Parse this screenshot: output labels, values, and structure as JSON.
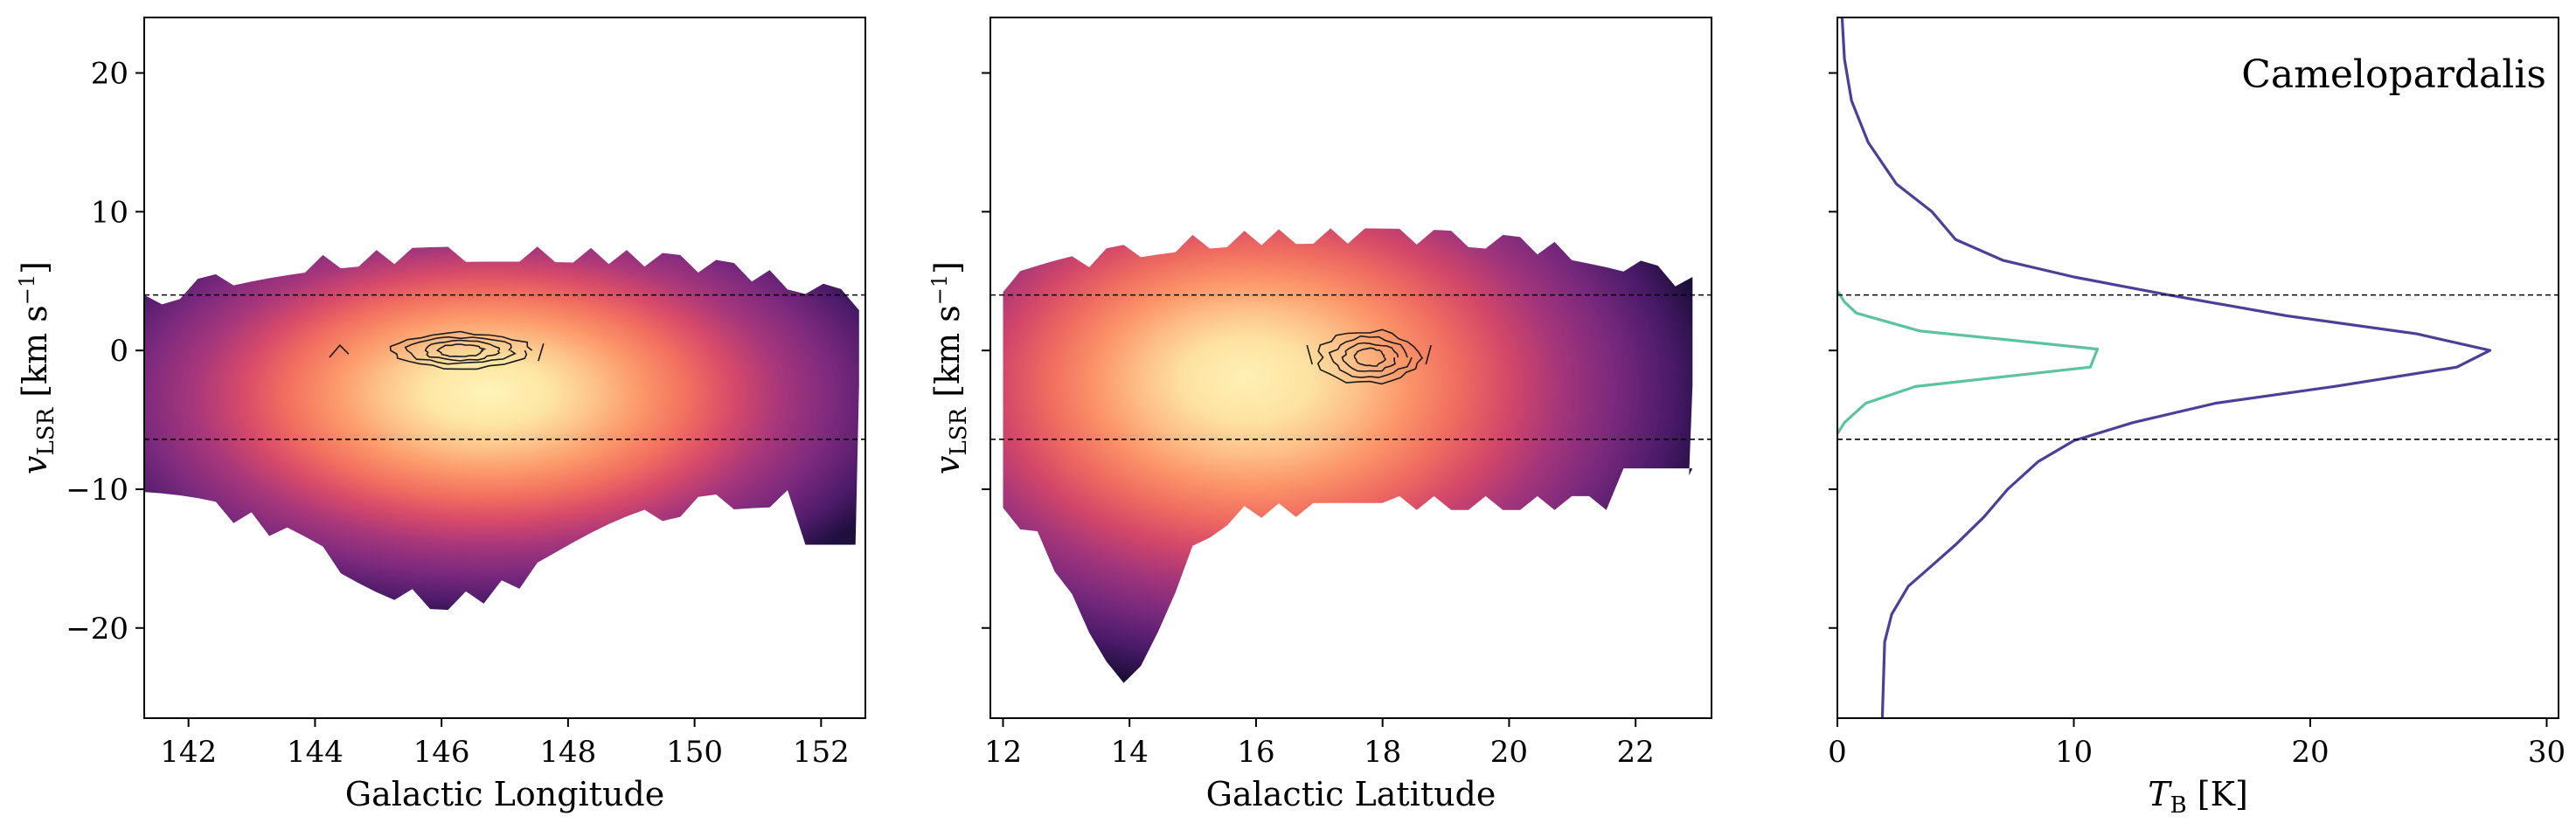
{
  "chart_data": [
    {
      "type": "heatmap",
      "panel": "lv",
      "xlabel": "Galactic Longitude",
      "ylabel": "v_LSR [km s^-1]",
      "ylabel_main": "v",
      "ylabel_sub": "LSR",
      "ylabel_units": " [km s",
      "ylabel_exp": "−1",
      "ylabel_close": "]",
      "xlim": [
        141.3,
        152.7
      ],
      "ylim": [
        -26.5,
        24
      ],
      "xticks": [
        142,
        144,
        146,
        148,
        150,
        152
      ],
      "yticks": [
        -20,
        -10,
        0,
        10,
        20
      ],
      "ytick_labels": [
        "−20",
        "−10",
        "0",
        "10",
        "20"
      ],
      "hlines": [
        4,
        -6.4
      ],
      "emission": {
        "x_range": [
          141.3,
          152.6
        ],
        "v_top": 7.5,
        "v_bottom_min": -19.5,
        "peak_center": [
          146.7,
          0
        ]
      },
      "contours_center": [
        146.3,
        0
      ]
    },
    {
      "type": "heatmap",
      "panel": "bv",
      "xlabel": "Galactic Latitude",
      "ylabel": "v_LSR [km s^-1]",
      "ylabel_main": "v",
      "ylabel_sub": "LSR",
      "ylabel_units": " [km s",
      "ylabel_exp": "−1",
      "ylabel_close": "]",
      "xlim": [
        11.8,
        23.2
      ],
      "ylim": [
        -26.5,
        24
      ],
      "xticks": [
        12,
        14,
        16,
        18,
        20,
        22
      ],
      "yticks": [
        -20,
        -10,
        0,
        10,
        20
      ],
      "hlines": [
        4,
        -6.4
      ],
      "emission": {
        "x_range": [
          12.0,
          22.9
        ],
        "v_top": 8.8,
        "v_bottom_min": -23.2,
        "peak_center": [
          15.5,
          1
        ]
      },
      "contours_center": [
        17.8,
        -0.5
      ]
    },
    {
      "type": "line",
      "panel": "spectrum",
      "xlabel": "T_B [K]",
      "xlabel_main": "T",
      "xlabel_sub": "B",
      "xlabel_units": " [K]",
      "annotation": "Camelopardalis",
      "xlim": [
        0,
        30.5
      ],
      "ylim": [
        -26.5,
        24
      ],
      "xticks": [
        0,
        10,
        20,
        30
      ],
      "yticks": [
        -20,
        -10,
        0,
        10,
        20
      ],
      "hlines": [
        4,
        -6.4
      ],
      "series": [
        {
          "color": "#4b3f98",
          "points": [
            [
              0.2,
              24
            ],
            [
              0.3,
              21
            ],
            [
              0.6,
              18
            ],
            [
              1.3,
              15
            ],
            [
              2.5,
              12
            ],
            [
              4,
              10
            ],
            [
              5,
              8
            ],
            [
              7,
              6.5
            ],
            [
              10,
              5.3
            ],
            [
              14,
              4
            ],
            [
              19,
              2.5
            ],
            [
              24.5,
              1.2
            ],
            [
              27.6,
              0
            ],
            [
              26.2,
              -1.2
            ],
            [
              21,
              -2.6
            ],
            [
              16,
              -3.8
            ],
            [
              12.5,
              -5.2
            ],
            [
              10,
              -6.5
            ],
            [
              8.5,
              -8
            ],
            [
              7.2,
              -10
            ],
            [
              6.2,
              -12
            ],
            [
              5,
              -14
            ],
            [
              4,
              -15.5
            ],
            [
              3,
              -17
            ],
            [
              2.3,
              -19
            ],
            [
              2,
              -21
            ],
            [
              1.9,
              -26.5
            ]
          ]
        },
        {
          "color": "#5cc3a2",
          "points": [
            [
              0,
              4.3
            ],
            [
              0.3,
              3.5
            ],
            [
              0.8,
              2.7
            ],
            [
              3.5,
              1.4
            ],
            [
              7,
              0.8
            ],
            [
              11,
              0.1
            ],
            [
              10.7,
              -1.2
            ],
            [
              7,
              -1.9
            ],
            [
              3.3,
              -2.6
            ],
            [
              1.2,
              -3.8
            ],
            [
              0.3,
              -5.2
            ],
            [
              0,
              -6
            ]
          ]
        }
      ]
    }
  ]
}
